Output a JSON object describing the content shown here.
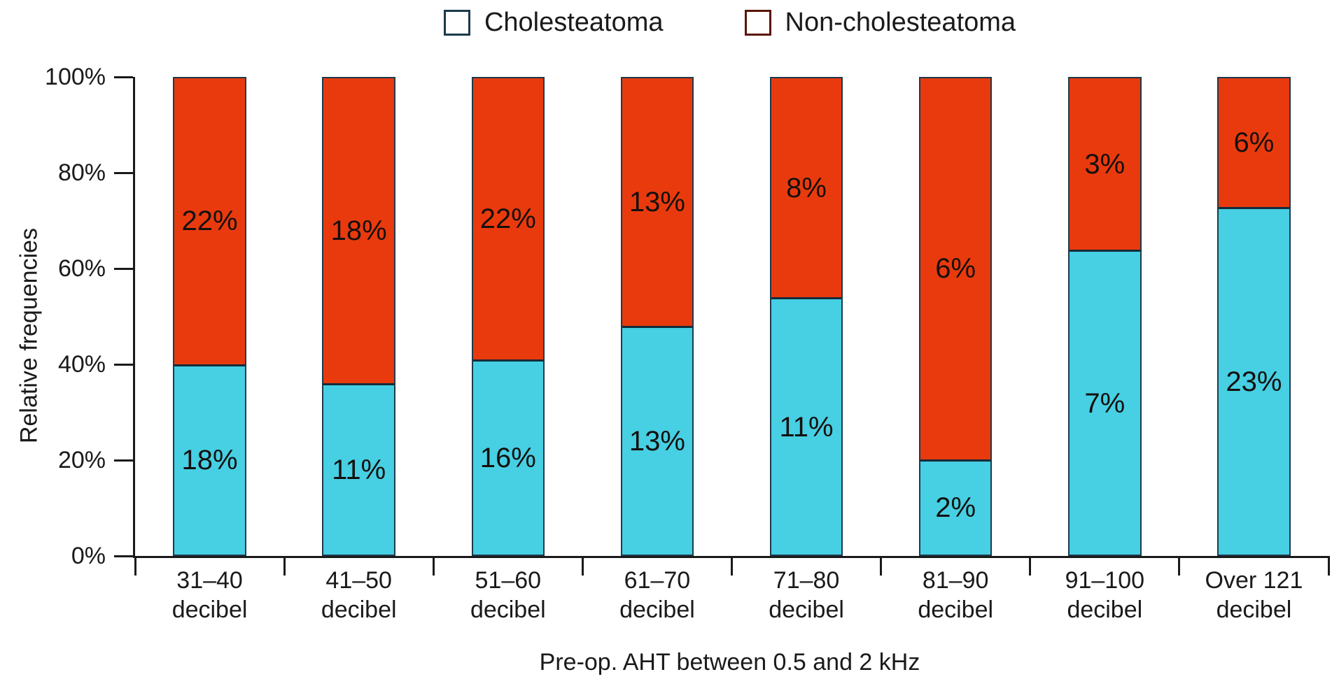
{
  "chart_data": {
    "type": "bar",
    "stacked": "100%",
    "orientation": "vertical",
    "title": "",
    "xlabel": "Pre-op. AHT between 0.5 and 2 kHz",
    "ylabel": "Relative frequencies",
    "ylim": [
      0,
      100
    ],
    "yticks": [
      "0%",
      "20%",
      "40%",
      "60%",
      "80%",
      "100%"
    ],
    "grid": false,
    "legend_position": "top-center",
    "categories": [
      {
        "line1": "31–40",
        "line2": "decibel"
      },
      {
        "line1": "41–50",
        "line2": "decibel"
      },
      {
        "line1": "51–60",
        "line2": "decibel"
      },
      {
        "line1": "61–70",
        "line2": "decibel"
      },
      {
        "line1": "71–80",
        "line2": "decibel"
      },
      {
        "line1": "81–90",
        "line2": "decibel"
      },
      {
        "line1": "91–100",
        "line2": "decibel"
      },
      {
        "line1": "Over 121",
        "line2": "decibel"
      }
    ],
    "series": [
      {
        "name": "Cholesteatoma",
        "color": "#47CFE3",
        "position": "bottom",
        "data_labels": [
          "18%",
          "11%",
          "16%",
          "13%",
          "11%",
          "2%",
          "7%",
          "23%"
        ],
        "segment_height_pct_of_bar": [
          40,
          36,
          41,
          48,
          54,
          20,
          64,
          73
        ]
      },
      {
        "name": "Non-cholesteatoma",
        "color": "#E93A0E",
        "position": "top",
        "data_labels": [
          "22%",
          "18%",
          "22%",
          "13%",
          "8%",
          "6%",
          "3%",
          "6%"
        ],
        "segment_height_pct_of_bar": [
          60,
          64,
          59,
          52,
          46,
          80,
          36,
          27
        ]
      }
    ],
    "colors": {
      "axis": "#1a1a1a",
      "bar_edge": "#1e3a4c",
      "label_text": "#14100e"
    }
  }
}
